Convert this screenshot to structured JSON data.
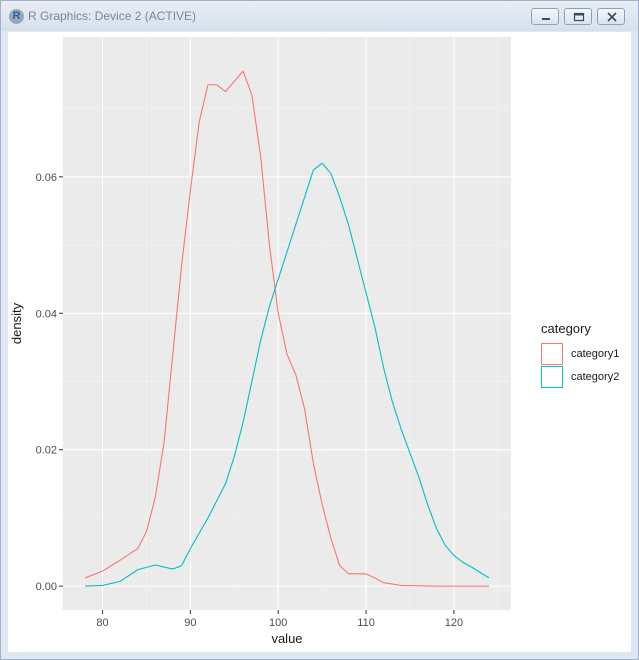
{
  "window": {
    "title": "R Graphics: Device 2 (ACTIVE)",
    "app_icon": "r-logo-icon",
    "buttons": [
      "minimize-icon",
      "maximize-icon",
      "close-icon"
    ]
  },
  "chart_data": {
    "type": "line",
    "xlabel": "value",
    "ylabel": "density",
    "xlim": [
      75.5,
      126.5
    ],
    "ylim": [
      -0.0035,
      0.0805
    ],
    "x_ticks": [
      80,
      90,
      100,
      110,
      120
    ],
    "x_tick_labels": [
      "80",
      "90",
      "100",
      "110",
      "120"
    ],
    "y_ticks": [
      0.0,
      0.02,
      0.04,
      0.06
    ],
    "y_tick_labels": [
      "0.00",
      "0.02",
      "0.04",
      "0.06"
    ],
    "grid": true,
    "legend": {
      "title": "category",
      "placement": "right"
    },
    "series": [
      {
        "name": "category1",
        "color": "#F8766D",
        "points": [
          [
            78,
            0.0012
          ],
          [
            80,
            0.0022
          ],
          [
            82,
            0.0038
          ],
          [
            84,
            0.0055
          ],
          [
            85,
            0.008
          ],
          [
            86,
            0.013
          ],
          [
            87,
            0.021
          ],
          [
            88,
            0.034
          ],
          [
            89,
            0.047
          ],
          [
            90,
            0.058
          ],
          [
            91,
            0.068
          ],
          [
            92,
            0.0735
          ],
          [
            93,
            0.0735
          ],
          [
            94,
            0.0725
          ],
          [
            95,
            0.074
          ],
          [
            96,
            0.0755
          ],
          [
            97,
            0.072
          ],
          [
            98,
            0.063
          ],
          [
            99,
            0.05
          ],
          [
            100,
            0.04
          ],
          [
            101,
            0.034
          ],
          [
            102,
            0.031
          ],
          [
            103,
            0.026
          ],
          [
            104,
            0.018
          ],
          [
            105,
            0.012
          ],
          [
            106,
            0.007
          ],
          [
            107,
            0.003
          ],
          [
            108,
            0.0018
          ],
          [
            109,
            0.0018
          ],
          [
            110,
            0.0018
          ],
          [
            111,
            0.0012
          ],
          [
            112,
            0.0005
          ],
          [
            114,
            0.0001
          ],
          [
            118,
            0.0
          ],
          [
            124,
            0.0
          ]
        ]
      },
      {
        "name": "category2",
        "color": "#00BFC4",
        "points": [
          [
            78,
            0.0
          ],
          [
            80,
            0.0001
          ],
          [
            82,
            0.0007
          ],
          [
            84,
            0.0024
          ],
          [
            86,
            0.0031
          ],
          [
            88,
            0.0025
          ],
          [
            89,
            0.003
          ],
          [
            90,
            0.0055
          ],
          [
            92,
            0.01
          ],
          [
            94,
            0.015
          ],
          [
            95,
            0.019
          ],
          [
            96,
            0.024
          ],
          [
            97,
            0.03
          ],
          [
            98,
            0.036
          ],
          [
            99,
            0.041
          ],
          [
            100,
            0.045
          ],
          [
            101,
            0.049
          ],
          [
            102,
            0.053
          ],
          [
            103,
            0.057
          ],
          [
            104,
            0.061
          ],
          [
            105,
            0.062
          ],
          [
            106,
            0.0605
          ],
          [
            107,
            0.057
          ],
          [
            108,
            0.053
          ],
          [
            109,
            0.048
          ],
          [
            110,
            0.043
          ],
          [
            111,
            0.038
          ],
          [
            112,
            0.032
          ],
          [
            113,
            0.027
          ],
          [
            114,
            0.023
          ],
          [
            115,
            0.0195
          ],
          [
            116,
            0.016
          ],
          [
            117,
            0.012
          ],
          [
            118,
            0.0085
          ],
          [
            119,
            0.006
          ],
          [
            120,
            0.0045
          ],
          [
            121,
            0.0035
          ],
          [
            122,
            0.0028
          ],
          [
            123,
            0.002
          ],
          [
            124,
            0.0012
          ]
        ]
      }
    ]
  }
}
